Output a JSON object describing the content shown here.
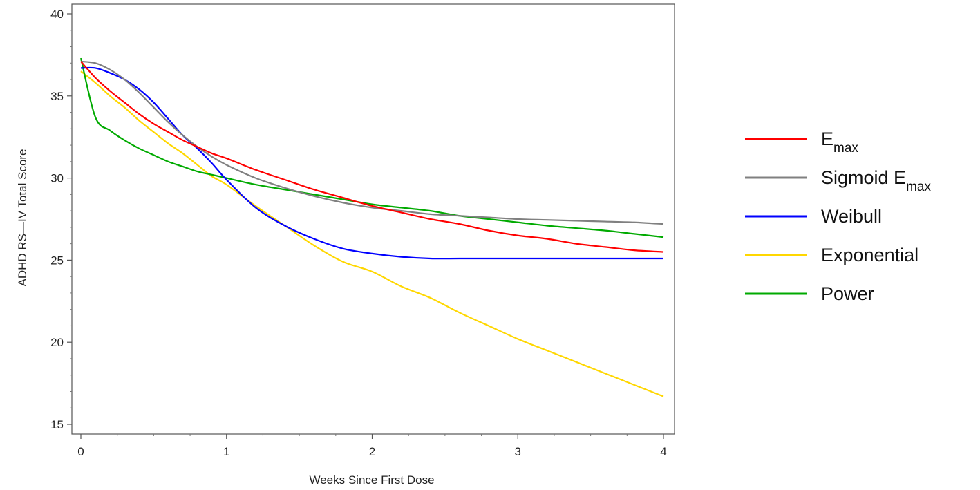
{
  "chart_data": {
    "type": "line",
    "title": "",
    "xlabel": "Weeks Since First Dose",
    "ylabel": "ADHD RS—IV Total Score",
    "xlim": [
      0,
      4
    ],
    "ylim": [
      15,
      40
    ],
    "x_ticks": [
      0,
      1,
      2,
      3,
      4
    ],
    "y_ticks": [
      15,
      20,
      25,
      30,
      35,
      40
    ],
    "grid": false,
    "legend_position": "right",
    "x": [
      0,
      0.1,
      0.2,
      0.3,
      0.4,
      0.5,
      0.6,
      0.7,
      0.8,
      0.9,
      1.0,
      1.2,
      1.4,
      1.6,
      1.8,
      2.0,
      2.2,
      2.4,
      2.6,
      2.8,
      3.0,
      3.2,
      3.4,
      3.6,
      3.8,
      4.0
    ],
    "series": [
      {
        "name": "E",
        "name_sub": "max",
        "color": "#ff0000",
        "values": [
          37.1,
          36.1,
          35.3,
          34.6,
          33.9,
          33.3,
          32.8,
          32.3,
          31.9,
          31.5,
          31.2,
          30.5,
          29.9,
          29.3,
          28.8,
          28.3,
          27.9,
          27.5,
          27.2,
          26.8,
          26.5,
          26.3,
          26.0,
          25.8,
          25.6,
          25.5
        ]
      },
      {
        "name": "Sigmoid E",
        "name_sub": "max",
        "color": "#808080",
        "values": [
          37.1,
          37.0,
          36.6,
          36.0,
          35.2,
          34.3,
          33.4,
          32.6,
          31.9,
          31.3,
          30.8,
          30.0,
          29.4,
          28.9,
          28.5,
          28.2,
          28.0,
          27.8,
          27.7,
          27.6,
          27.5,
          27.45,
          27.4,
          27.35,
          27.3,
          27.2
        ]
      },
      {
        "name": "Weibull",
        "color": "#0000ff",
        "values": [
          36.7,
          36.7,
          36.4,
          36.0,
          35.4,
          34.6,
          33.6,
          32.6,
          31.8,
          30.9,
          29.9,
          28.2,
          27.1,
          26.3,
          25.7,
          25.4,
          25.2,
          25.1,
          25.1,
          25.1,
          25.1,
          25.1,
          25.1,
          25.1,
          25.1,
          25.1
        ]
      },
      {
        "name": "Exponential",
        "color": "#ffd700",
        "values": [
          36.5,
          35.8,
          35.0,
          34.3,
          33.5,
          32.8,
          32.1,
          31.5,
          30.8,
          30.1,
          29.6,
          28.3,
          27.1,
          25.9,
          24.9,
          24.3,
          23.4,
          22.7,
          21.8,
          21.0,
          20.2,
          19.5,
          18.8,
          18.1,
          17.4,
          16.7
        ]
      },
      {
        "name": "Power",
        "color": "#00aa00",
        "values": [
          37.3,
          33.7,
          32.9,
          32.3,
          31.8,
          31.4,
          31.0,
          30.7,
          30.4,
          30.2,
          30.0,
          29.6,
          29.3,
          29.0,
          28.7,
          28.4,
          28.2,
          28.0,
          27.7,
          27.5,
          27.3,
          27.1,
          26.95,
          26.8,
          26.6,
          26.4
        ]
      }
    ]
  }
}
